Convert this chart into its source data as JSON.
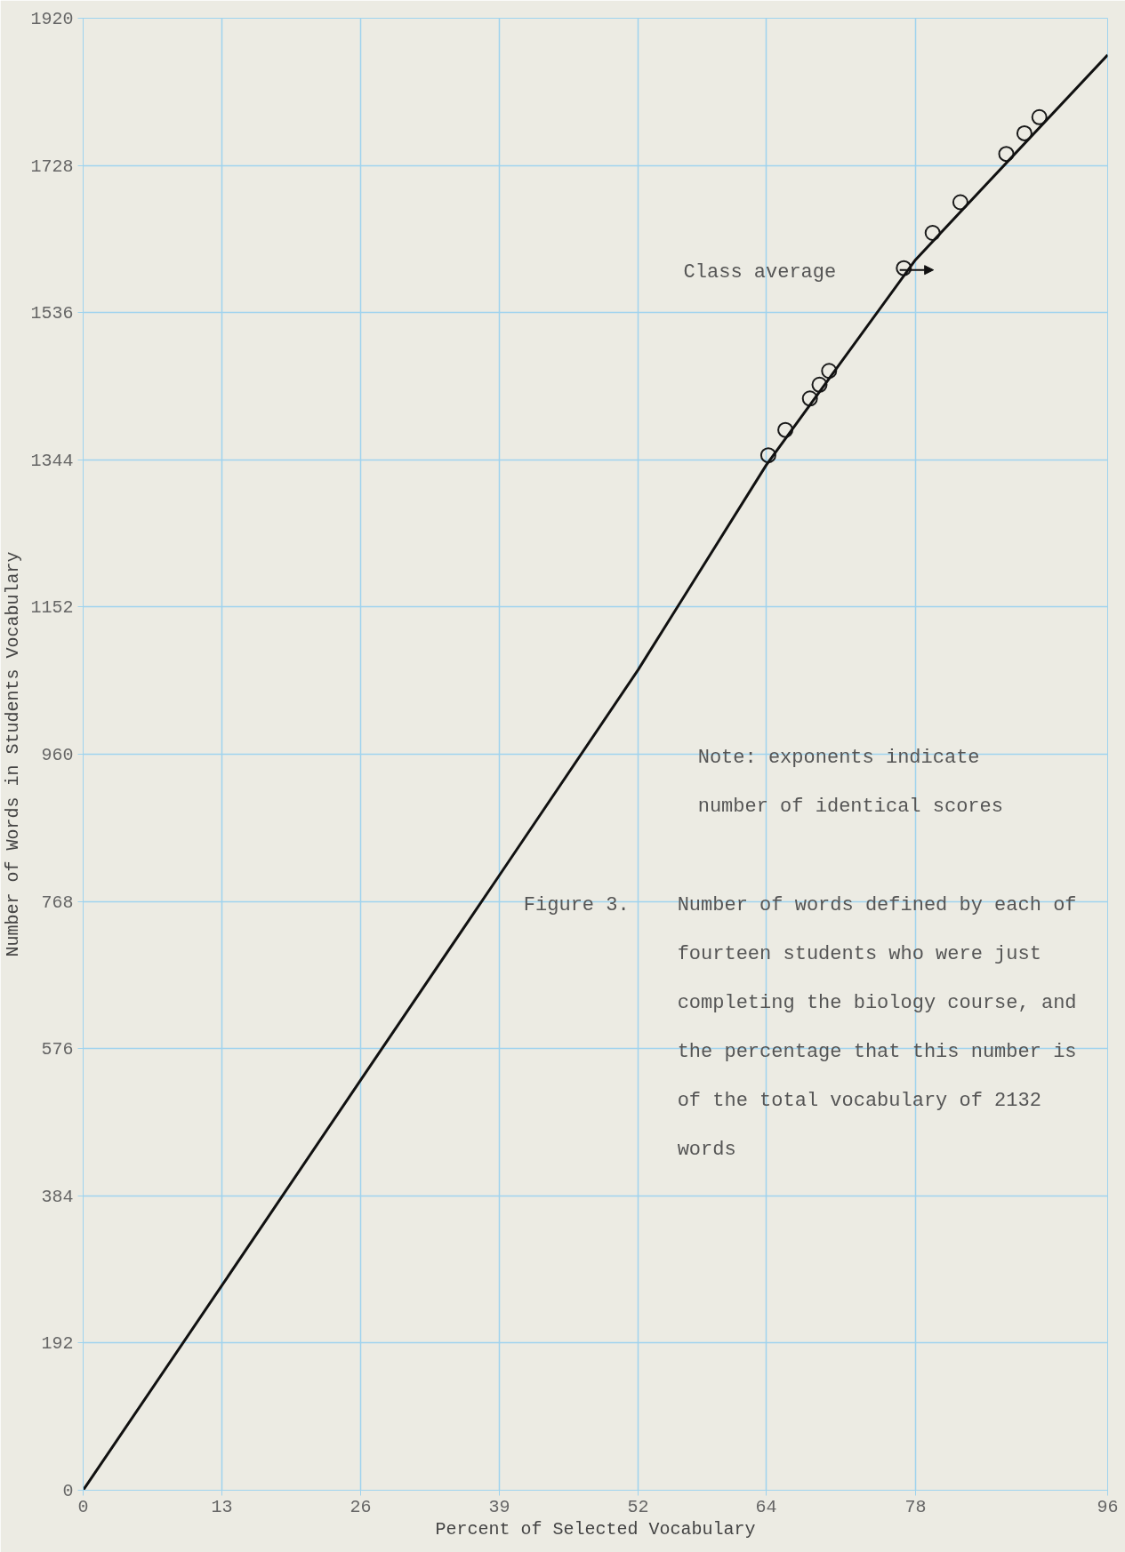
{
  "chart_data": {
    "type": "scatter",
    "xlabel": "Percent of Selected Vocabulary",
    "ylabel": "Number of Words in Students Vocabulary",
    "xlim": [
      0,
      96
    ],
    "ylim": [
      0,
      1920
    ],
    "xticks": [
      0,
      13,
      26,
      39,
      52,
      64,
      78,
      96
    ],
    "yticks": [
      0,
      192,
      384,
      576,
      768,
      960,
      1152,
      1344,
      1536,
      1728,
      1920
    ],
    "grid": true,
    "series": [
      {
        "color": "#1a1a1a",
        "marker": "circle",
        "x": [
          64.2,
          65.8,
          68.1,
          69.0,
          69.9,
          76.9,
          79.6,
          82.2,
          86.5,
          88.2,
          89.6
        ],
        "values": [
          1350,
          1383,
          1424,
          1442,
          1460,
          1594,
          1640,
          1680,
          1743,
          1770,
          1791
        ]
      },
      {
        "type": "line",
        "color": "#111111",
        "x": [
          0,
          13,
          26,
          39,
          52,
          64,
          78,
          96
        ],
        "values": [
          0,
          267,
          535,
          802,
          1070,
          1337,
          1605,
          1872
        ]
      }
    ],
    "annotations": [
      "Class average",
      "Note:  exponents indicate\n       number of identical scores",
      "Figure  3.",
      "Number of words defined by each of\nfourteen students who were just\ncompleting the biology course, and\nthe percentage that this number is\nof the total vocabulary of 2132\nwords"
    ]
  }
}
